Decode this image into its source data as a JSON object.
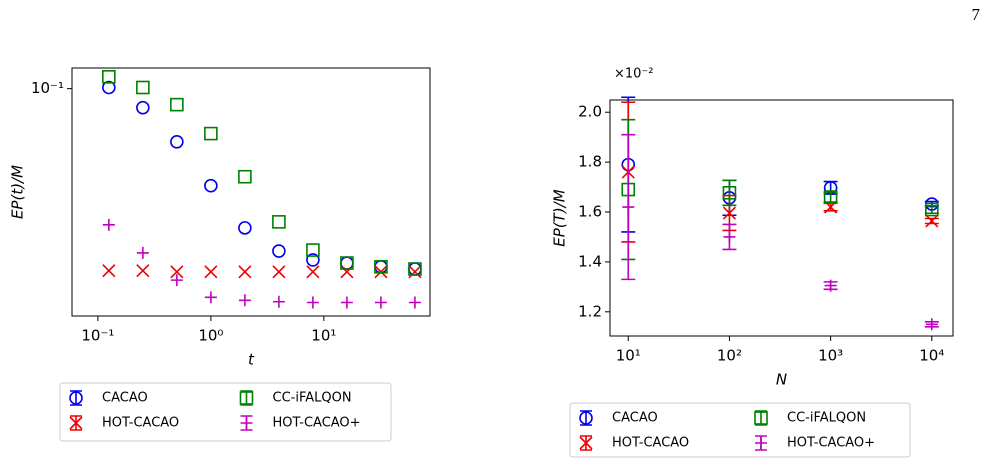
{
  "page_number": "7",
  "chart_data": [
    {
      "type": "scatter",
      "xlog": true,
      "ylog": true,
      "xlabel": "t",
      "ylabel": "EP(t)/M",
      "x": [
        0.125,
        0.25,
        0.5,
        1,
        2,
        4,
        8,
        16,
        32,
        64
      ],
      "xlim": [
        0.059,
        87
      ],
      "ylim": [
        0.0134,
        0.12
      ],
      "xticks": [
        {
          "value": 0.1,
          "label": "10⁻¹"
        },
        {
          "value": 1,
          "label": "10⁰"
        },
        {
          "value": 10,
          "label": "10¹"
        }
      ],
      "yticks": [
        {
          "value": 0.1,
          "label": "10⁻¹"
        }
      ],
      "legend_position": "below",
      "series": [
        {
          "name": "CACAO",
          "color": "#0000ee",
          "marker": "o",
          "values": [
            0.101,
            0.0845,
            0.0625,
            0.0424,
            0.0292,
            0.0238,
            0.022,
            0.0214,
            0.0207,
            0.0203
          ]
        },
        {
          "name": "HOT-CACAO",
          "color": "#ee0000",
          "marker": "x",
          "values": [
            0.02,
            0.02,
            0.0198,
            0.0198,
            0.0198,
            0.0198,
            0.0198,
            0.0198,
            0.0198,
            0.0198
          ]
        },
        {
          "name": "CC-iFALQON",
          "color": "#008000",
          "marker": "s",
          "values": [
            0.111,
            0.101,
            0.0868,
            0.0672,
            0.0459,
            0.0308,
            0.024,
            0.0214,
            0.0207,
            0.0203
          ]
        },
        {
          "name": "HOT-CACAO+",
          "color": "#c000c0",
          "marker": "+",
          "values": [
            0.03,
            0.0234,
            0.0184,
            0.0158,
            0.0154,
            0.0152,
            0.0151,
            0.0151,
            0.0151,
            0.0151
          ]
        }
      ]
    },
    {
      "type": "errorbar",
      "xlog": true,
      "ylog": false,
      "xlabel": "N",
      "ylabel": "EP(T)/M",
      "offset_label": "×10⁻²",
      "x": [
        10,
        100,
        1000,
        10000
      ],
      "xlim": [
        6.6,
        16200
      ],
      "ylim": [
        1.103,
        2.049
      ],
      "xticks": [
        {
          "value": 10,
          "label": "10¹"
        },
        {
          "value": 100,
          "label": "10²"
        },
        {
          "value": 1000,
          "label": "10³"
        },
        {
          "value": 10000,
          "label": "10⁴"
        }
      ],
      "yticks": [
        1.2,
        1.4,
        1.6,
        1.8,
        {
          "value": 2,
          "label": "2.0"
        }
      ],
      "legend_position": "below",
      "series": [
        {
          "name": "CACAO",
          "color": "#0000ee",
          "marker": "o",
          "values": [
            1.79,
            1.657,
            1.697,
            1.632
          ],
          "errors": [
            0.27,
            0.07,
            0.025,
            0.01
          ]
        },
        {
          "name": "HOT-CACAO",
          "color": "#ee0000",
          "marker": "x",
          "values": [
            1.76,
            1.596,
            1.62,
            1.564
          ],
          "errors": [
            0.28,
            0.07,
            0.015,
            0.01
          ]
        },
        {
          "name": "CC-iFALQON",
          "color": "#008000",
          "marker": "s",
          "values": [
            1.69,
            1.677,
            1.66,
            1.61
          ],
          "errors": [
            0.28,
            0.05,
            0.02,
            0.015
          ]
        },
        {
          "name": "HOT-CACAO+",
          "color": "#c000c0",
          "marker": "+",
          "values": [
            1.62,
            1.5,
            1.305,
            1.15
          ],
          "errors": [
            0.29,
            0.05,
            0.015,
            0.01
          ]
        }
      ]
    }
  ]
}
